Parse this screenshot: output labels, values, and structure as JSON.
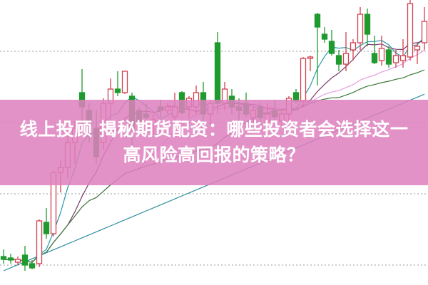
{
  "banner": {
    "title_line1": "线上投顾 揭秘期货配资：哪些投资者会选择这一",
    "title_line2": "高风险高回报的策略？",
    "background": "#dd80be"
  },
  "chart_data": {
    "type": "candlestick",
    "up_color": "#d2404f",
    "down_color": "#1f9a2e",
    "grid": "dotted-horizontal",
    "ylim": [
      0,
      400
    ],
    "candles_ohlc": [
      [
        40,
        50,
        30,
        36
      ],
      [
        38,
        44,
        30,
        35
      ],
      [
        32,
        40,
        28,
        36
      ],
      [
        42,
        55,
        20,
        28
      ],
      [
        30,
        35,
        22,
        24
      ],
      [
        30,
        92,
        25,
        90
      ],
      [
        88,
        108,
        65,
        72
      ],
      [
        72,
        160,
        68,
        158
      ],
      [
        158,
        175,
        130,
        165
      ],
      [
        165,
        215,
        150,
        200
      ],
      [
        200,
        230,
        170,
        220
      ],
      [
        270,
        303,
        215,
        250
      ],
      [
        245,
        255,
        200,
        225
      ],
      [
        220,
        245,
        170,
        180
      ],
      [
        200,
        262,
        190,
        255
      ],
      [
        255,
        290,
        230,
        275
      ],
      [
        275,
        300,
        265,
        270
      ],
      [
        270,
        300,
        268,
        300
      ],
      [
        265,
        270,
        190,
        220
      ],
      [
        245,
        250,
        225,
        230
      ],
      [
        240,
        255,
        230,
        235
      ],
      [
        225,
        240,
        210,
        232
      ],
      [
        250,
        260,
        235,
        245
      ],
      [
        245,
        255,
        240,
        250
      ],
      [
        236,
        270,
        230,
        250
      ],
      [
        270,
        272,
        240,
        242
      ],
      [
        250,
        265,
        235,
        262
      ],
      [
        250,
        280,
        240,
        270
      ],
      [
        270,
        285,
        230,
        240
      ],
      [
        240,
        260,
        225,
        255
      ],
      [
        340,
        355,
        240,
        255
      ],
      [
        255,
        285,
        245,
        275
      ],
      [
        265,
        275,
        240,
        250
      ],
      [
        250,
        262,
        230,
        245
      ],
      [
        255,
        270,
        235,
        240
      ],
      [
        235,
        250,
        225,
        245
      ],
      [
        250,
        255,
        225,
        235
      ],
      [
        230,
        255,
        225,
        240
      ],
      [
        245,
        260,
        230,
        236
      ],
      [
        230,
        245,
        225,
        240
      ],
      [
        240,
        265,
        230,
        262
      ],
      [
        270,
        275,
        255,
        258
      ],
      [
        258,
        320,
        250,
        318
      ],
      [
        318,
        322,
        300,
        320
      ],
      [
        380,
        382,
        280,
        362
      ],
      [
        352,
        362,
        340,
        345
      ],
      [
        342,
        358,
        322,
        325
      ],
      [
        322,
        330,
        300,
        310
      ],
      [
        310,
        355,
        300,
        325
      ],
      [
        330,
        345,
        315,
        340
      ],
      [
        340,
        390,
        330,
        380
      ],
      [
        380,
        388,
        335,
        352
      ],
      [
        325,
        350,
        310,
        312
      ],
      [
        315,
        350,
        308,
        332
      ],
      [
        330,
        335,
        305,
        310
      ],
      [
        312,
        330,
        305,
        322
      ],
      [
        315,
        345,
        305,
        322
      ],
      [
        320,
        400,
        315,
        395
      ],
      [
        330,
        340,
        310,
        335
      ],
      [
        340,
        390,
        330,
        370
      ]
    ],
    "moving_averages": [
      {
        "period": 5,
        "color": "#2a9aa8"
      },
      {
        "period": 10,
        "color": "#7a3a6a"
      },
      {
        "period": 20,
        "color": "#e79be0"
      },
      {
        "period": 30,
        "color": "#3a7a3a"
      },
      {
        "period": 60,
        "color": "#2f8fa0"
      }
    ]
  }
}
